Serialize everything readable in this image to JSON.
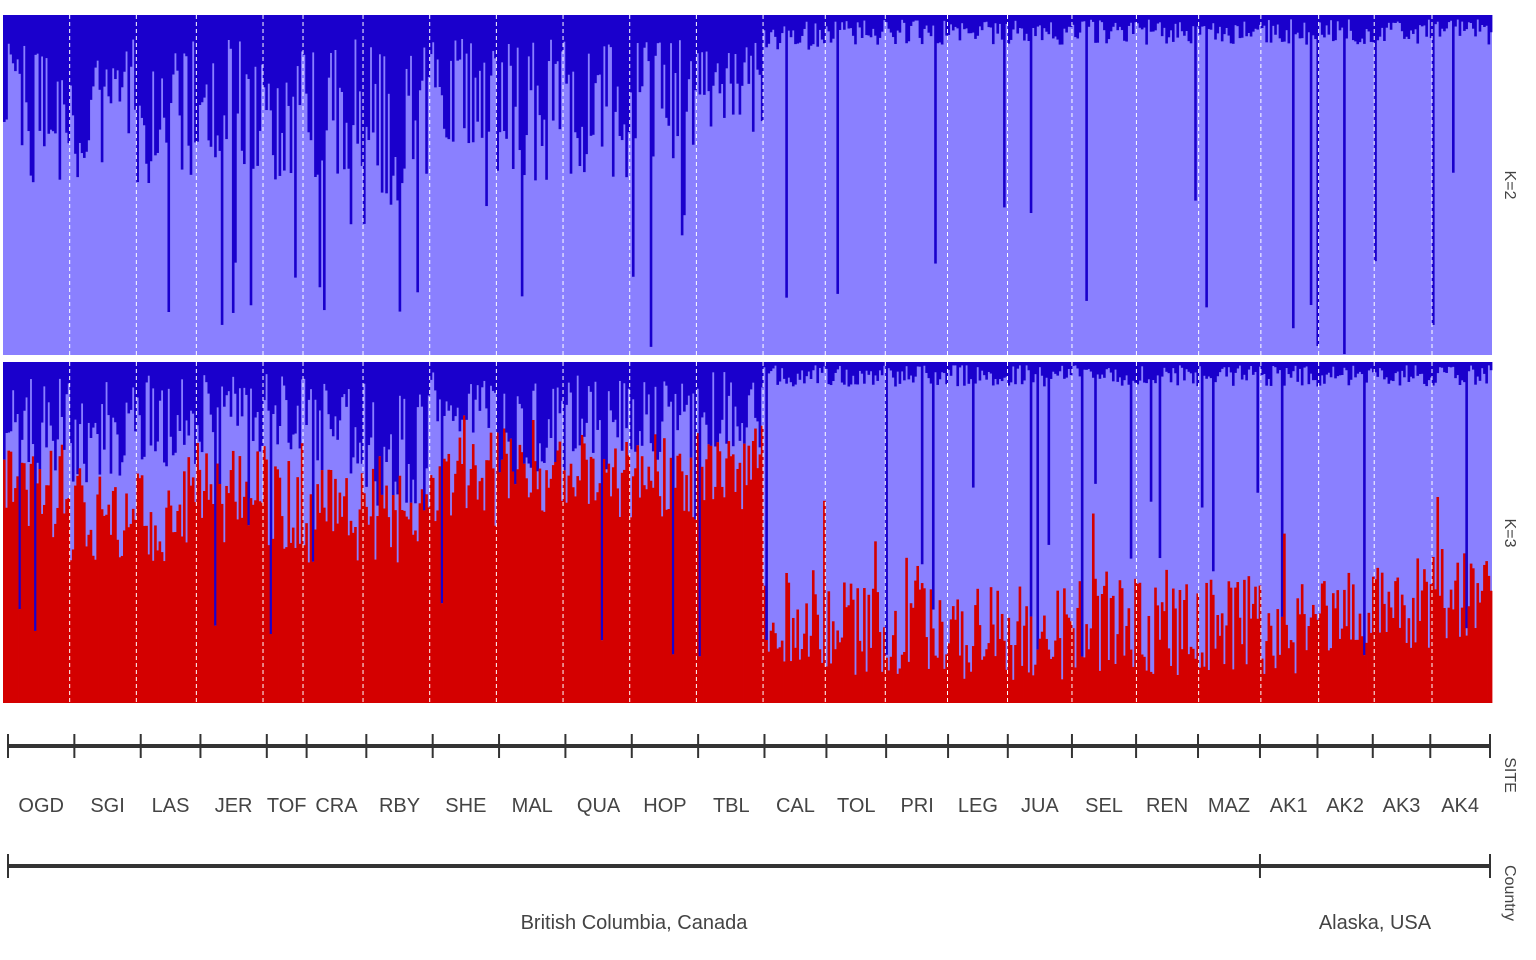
{
  "chart_data": {
    "type": "bar",
    "layout": "stacked admixture proportions per individual",
    "panels": [
      {
        "label": "K=2",
        "clusters": [
          {
            "cluster": 1,
            "color": "#1a00cc"
          },
          {
            "cluster": 2,
            "color": "#8a80ff"
          }
        ],
        "mean_cluster1_by_site": [
          0.3,
          0.28,
          0.3,
          0.27,
          0.28,
          0.28,
          0.33,
          0.22,
          0.28,
          0.28,
          0.26,
          0.22,
          0.06,
          0.05,
          0.05,
          0.05,
          0.05,
          0.05,
          0.05,
          0.05,
          0.05,
          0.05,
          0.05,
          0.05
        ]
      },
      {
        "label": "K=3",
        "clusters": [
          {
            "cluster": 1,
            "color": "#1a00cc"
          },
          {
            "cluster": 2,
            "color": "#8a80ff"
          },
          {
            "cluster": 3,
            "color": "#d40000"
          }
        ],
        "mean_cluster1_by_site": [
          0.18,
          0.2,
          0.17,
          0.15,
          0.15,
          0.2,
          0.24,
          0.12,
          0.18,
          0.18,
          0.16,
          0.14,
          0.04,
          0.04,
          0.04,
          0.04,
          0.04,
          0.04,
          0.04,
          0.04,
          0.04,
          0.04,
          0.04,
          0.04
        ],
        "mean_cluster3_by_site": [
          0.62,
          0.55,
          0.55,
          0.6,
          0.58,
          0.55,
          0.55,
          0.65,
          0.7,
          0.65,
          0.68,
          0.7,
          0.25,
          0.22,
          0.22,
          0.2,
          0.2,
          0.23,
          0.22,
          0.23,
          0.22,
          0.28,
          0.3,
          0.32
        ]
      }
    ],
    "sites": [
      {
        "code": "OGD",
        "n": 30
      },
      {
        "code": "SGI",
        "n": 30
      },
      {
        "code": "LAS",
        "n": 27
      },
      {
        "code": "JER",
        "n": 30
      },
      {
        "code": "TOF",
        "n": 18
      },
      {
        "code": "CRA",
        "n": 27
      },
      {
        "code": "RBY",
        "n": 30
      },
      {
        "code": "SHE",
        "n": 30
      },
      {
        "code": "MAL",
        "n": 30
      },
      {
        "code": "QUA",
        "n": 30
      },
      {
        "code": "HOP",
        "n": 30
      },
      {
        "code": "TBL",
        "n": 30
      },
      {
        "code": "CAL",
        "n": 28
      },
      {
        "code": "TOL",
        "n": 27
      },
      {
        "code": "PRI",
        "n": 28
      },
      {
        "code": "LEG",
        "n": 27
      },
      {
        "code": "JUA",
        "n": 29
      },
      {
        "code": "SEL",
        "n": 29
      },
      {
        "code": "REN",
        "n": 28
      },
      {
        "code": "MAZ",
        "n": 28
      },
      {
        "code": "AK1",
        "n": 26
      },
      {
        "code": "AK2",
        "n": 25
      },
      {
        "code": "AK3",
        "n": 26
      },
      {
        "code": "AK4",
        "n": 27
      }
    ],
    "countries": [
      {
        "name": "British Columbia, Canada",
        "first_site": 0,
        "last_site": 19
      },
      {
        "name": "Alaska, USA",
        "first_site": 20,
        "last_site": 23
      }
    ],
    "strip_labels": {
      "k2": "K=2",
      "k3": "K=3",
      "site": "SITE",
      "country": "Country"
    },
    "gridlines": "dashed white between sites"
  }
}
